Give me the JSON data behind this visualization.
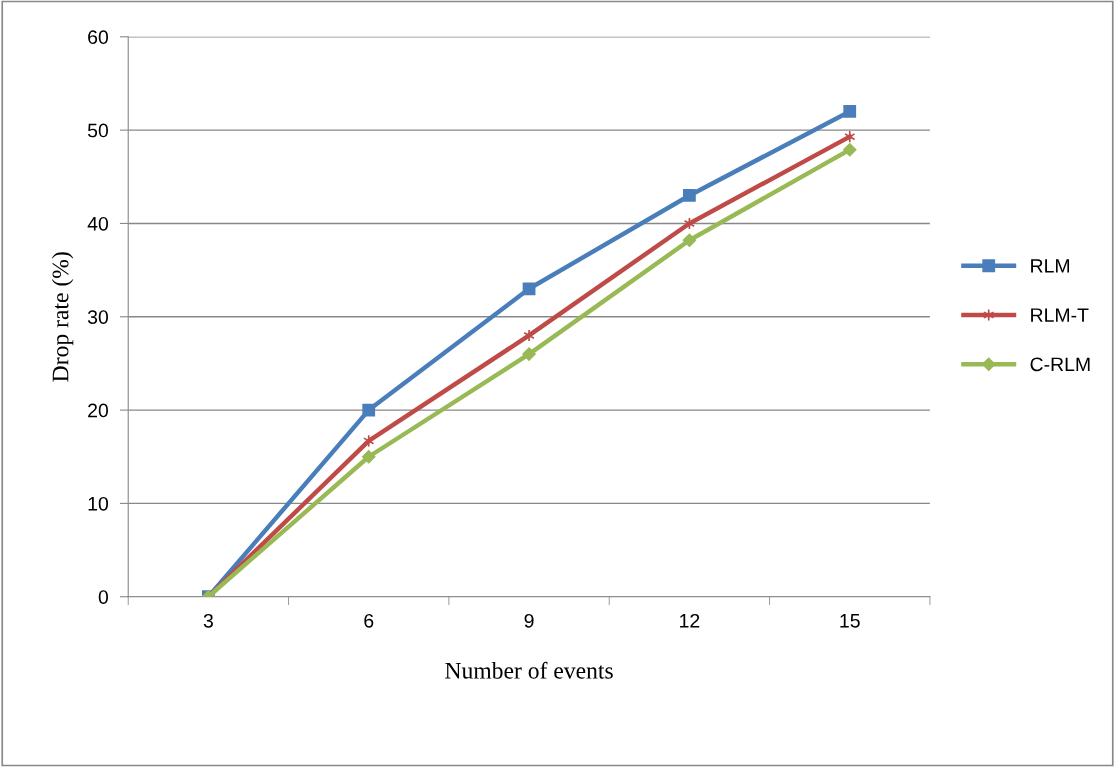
{
  "chart_data": {
    "type": "line",
    "xlabel": "Number of events",
    "ylabel": "Drop rate (%)",
    "categories": [
      "3",
      "6",
      "9",
      "12",
      "15"
    ],
    "series": [
      {
        "name": "RLM",
        "color": "#4a7ebb",
        "marker": "square",
        "values": [
          0,
          20,
          33,
          43,
          52
        ]
      },
      {
        "name": "RLM-T",
        "color": "#be4b48",
        "marker": "cross",
        "values": [
          0,
          16.7,
          28,
          40,
          49.3
        ]
      },
      {
        "name": "C-RLM",
        "color": "#98b954",
        "marker": "diamond",
        "values": [
          0,
          15,
          26,
          38.2,
          47.9
        ]
      }
    ],
    "ylim": [
      0,
      60
    ],
    "yticks": [
      0,
      10,
      20,
      30,
      40,
      50,
      60
    ],
    "grid": "y",
    "legend": "right",
    "line_style": "solid"
  }
}
